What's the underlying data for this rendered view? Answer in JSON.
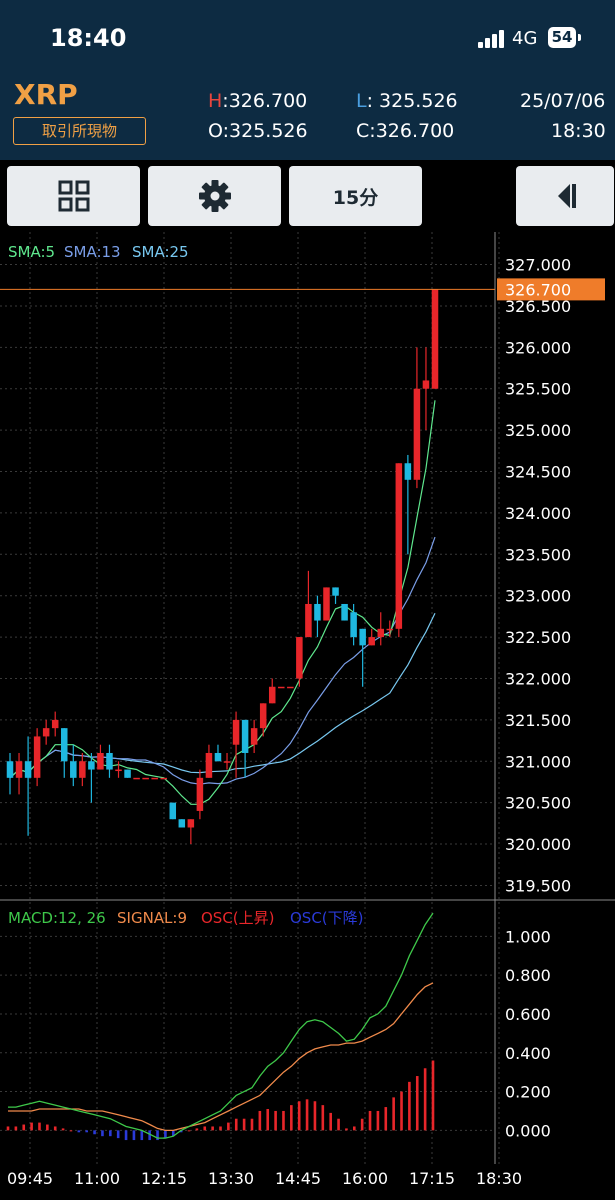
{
  "status": {
    "time": "18:40",
    "network": "4G",
    "battery": "54"
  },
  "header": {
    "symbol": "XRP",
    "market": "取引所現物",
    "high_label": "H",
    "high": "326.700",
    "low_label": "L",
    "low": "325.526",
    "open_label": "O",
    "open": "325.526",
    "close_label": "C",
    "close": "326.700",
    "date": "25/07/06",
    "clock": "18:30"
  },
  "toolbar": {
    "grid_icon": "grid-icon",
    "settings_icon": "gear-icon",
    "interval": "15分",
    "collapse_icon": "collapse-left-icon"
  },
  "colors": {
    "up": "#e8262a",
    "down": "#1fb8e0",
    "sma5": "#5fe88e",
    "sma13": "#7a9ee8",
    "sma25": "#78c8f0",
    "macd": "#3ec84a",
    "signal": "#f08a4b",
    "osc_up": "#e8262a",
    "osc_down": "#2a3ad8",
    "last_price": "#ef7c2a",
    "grid": "#3a3a3a"
  },
  "chart_data": [
    {
      "type": "candlestick",
      "legend": [
        {
          "label": "SMA:5",
          "color": "#5fe88e"
        },
        {
          "label": "SMA:13",
          "color": "#7a9ee8"
        },
        {
          "label": "SMA:25",
          "color": "#78c8f0"
        }
      ],
      "y_ticks": [
        "327.000",
        "326.500",
        "326.000",
        "325.500",
        "325.000",
        "324.500",
        "324.000",
        "323.500",
        "323.000",
        "322.500",
        "322.000",
        "321.500",
        "321.000",
        "320.500",
        "320.000",
        "319.500"
      ],
      "ylim": [
        319.3,
        327.2
      ],
      "last_price": "326.700",
      "candles": [
        [
          321.0,
          320.8,
          321.1,
          320.6
        ],
        [
          320.8,
          321.0,
          321.1,
          320.6
        ],
        [
          321.0,
          320.8,
          321.3,
          320.1
        ],
        [
          320.8,
          321.3,
          321.4,
          320.7
        ],
        [
          321.3,
          321.4,
          321.5,
          321.2
        ],
        [
          321.4,
          321.5,
          321.6,
          321.3
        ],
        [
          321.4,
          321.0,
          321.4,
          320.8
        ],
        [
          321.0,
          320.8,
          321.2,
          320.7
        ],
        [
          320.8,
          321.0,
          321.1,
          320.7
        ],
        [
          321.0,
          320.9,
          321.1,
          320.5
        ],
        [
          320.9,
          321.1,
          321.2,
          320.9
        ],
        [
          321.1,
          320.9,
          321.2,
          320.8
        ],
        [
          320.9,
          320.9,
          321.0,
          320.8
        ],
        [
          320.9,
          320.8,
          320.9,
          320.8
        ],
        [
          320.8,
          320.8,
          320.8,
          320.8
        ],
        [
          320.8,
          320.8,
          320.8,
          320.8
        ],
        [
          320.8,
          320.8,
          320.8,
          320.8
        ],
        [
          320.8,
          320.8,
          320.8,
          320.8
        ],
        [
          320.5,
          320.3,
          320.5,
          320.3
        ],
        [
          320.3,
          320.2,
          320.3,
          320.2
        ],
        [
          320.2,
          320.3,
          320.3,
          320.0
        ],
        [
          320.4,
          320.8,
          320.9,
          320.3
        ],
        [
          320.8,
          321.1,
          321.2,
          320.8
        ],
        [
          321.1,
          321.0,
          321.2,
          321.0
        ],
        [
          321.0,
          321.0,
          321.1,
          320.9
        ],
        [
          321.2,
          321.5,
          321.6,
          320.8
        ],
        [
          321.5,
          321.1,
          321.5,
          320.8
        ],
        [
          321.2,
          321.4,
          321.5,
          321.1
        ],
        [
          321.4,
          321.7,
          321.7,
          321.3
        ],
        [
          321.7,
          321.9,
          322.0,
          321.7
        ],
        [
          321.9,
          321.9,
          321.9,
          321.9
        ],
        [
          321.9,
          321.9,
          321.9,
          321.9
        ],
        [
          322.0,
          322.5,
          322.5,
          321.9
        ],
        [
          322.5,
          322.9,
          323.3,
          322.5
        ],
        [
          322.9,
          322.7,
          323.0,
          322.5
        ],
        [
          322.7,
          323.1,
          323.1,
          322.7
        ],
        [
          323.1,
          323.0,
          323.1,
          322.9
        ],
        [
          322.9,
          322.7,
          322.9,
          322.7
        ],
        [
          322.8,
          322.5,
          322.9,
          322.4
        ],
        [
          322.6,
          322.4,
          322.6,
          321.9
        ],
        [
          322.4,
          322.5,
          322.6,
          322.4
        ],
        [
          322.5,
          322.6,
          322.8,
          322.4
        ],
        [
          322.6,
          322.6,
          322.7,
          322.5
        ],
        [
          322.6,
          324.6,
          324.6,
          322.5
        ],
        [
          324.6,
          324.4,
          324.7,
          323.5
        ],
        [
          324.4,
          325.5,
          326.0,
          324.3
        ],
        [
          325.5,
          325.6,
          326.0,
          325.0
        ],
        [
          325.5,
          326.7,
          326.7,
          325.5
        ]
      ]
    },
    {
      "type": "line",
      "legend": [
        {
          "label": "MACD:12, 26",
          "color": "#3ec84a"
        },
        {
          "label": "SIGNAL:9",
          "color": "#f08a4b"
        },
        {
          "label": "OSC(上昇)",
          "color": "#e8262a"
        },
        {
          "label": "OSC(下降)",
          "color": "#2a3ad8"
        }
      ],
      "y_ticks": [
        "1.000",
        "0.800",
        "0.600",
        "0.400",
        "0.200",
        "0.000"
      ],
      "ylim": [
        -0.06,
        1.11
      ],
      "x_ticks": [
        "09:45",
        "11:00",
        "12:15",
        "13:30",
        "14:45",
        "16:00",
        "17:15",
        "18:30"
      ],
      "macd": [
        0.12,
        0.12,
        0.13,
        0.14,
        0.15,
        0.14,
        0.13,
        0.12,
        0.11,
        0.1,
        0.09,
        0.08,
        0.07,
        0.06,
        0.04,
        0.02,
        0.01,
        0.0,
        -0.02,
        -0.04,
        -0.04,
        -0.03,
        0.0,
        0.02,
        0.04,
        0.06,
        0.08,
        0.1,
        0.14,
        0.18,
        0.2,
        0.22,
        0.28,
        0.33,
        0.36,
        0.4,
        0.46,
        0.52,
        0.56,
        0.57,
        0.56,
        0.53,
        0.5,
        0.46,
        0.47,
        0.52,
        0.58,
        0.6,
        0.64,
        0.72,
        0.8,
        0.9,
        0.98,
        1.06,
        1.12
      ],
      "signal": [
        0.1,
        0.1,
        0.1,
        0.1,
        0.11,
        0.11,
        0.11,
        0.11,
        0.11,
        0.11,
        0.1,
        0.1,
        0.1,
        0.09,
        0.08,
        0.07,
        0.06,
        0.05,
        0.03,
        0.01,
        0.0,
        0.0,
        0.01,
        0.02,
        0.03,
        0.04,
        0.06,
        0.08,
        0.1,
        0.12,
        0.14,
        0.16,
        0.18,
        0.22,
        0.26,
        0.3,
        0.33,
        0.37,
        0.4,
        0.42,
        0.43,
        0.44,
        0.44,
        0.45,
        0.45,
        0.46,
        0.48,
        0.5,
        0.52,
        0.55,
        0.6,
        0.65,
        0.7,
        0.74,
        0.76
      ],
      "osc": [
        0.02,
        0.02,
        0.03,
        0.04,
        0.04,
        0.03,
        0.02,
        0.01,
        0.0,
        -0.01,
        -0.01,
        -0.02,
        -0.03,
        -0.03,
        -0.04,
        -0.05,
        -0.05,
        -0.05,
        -0.05,
        -0.05,
        -0.04,
        -0.03,
        -0.01,
        0.0,
        0.01,
        0.02,
        0.02,
        0.02,
        0.04,
        0.06,
        0.06,
        0.06,
        0.1,
        0.11,
        0.1,
        0.1,
        0.13,
        0.15,
        0.16,
        0.15,
        0.13,
        0.09,
        0.06,
        0.01,
        0.02,
        0.06,
        0.1,
        0.1,
        0.12,
        0.17,
        0.2,
        0.25,
        0.28,
        0.32,
        0.36
      ]
    }
  ]
}
